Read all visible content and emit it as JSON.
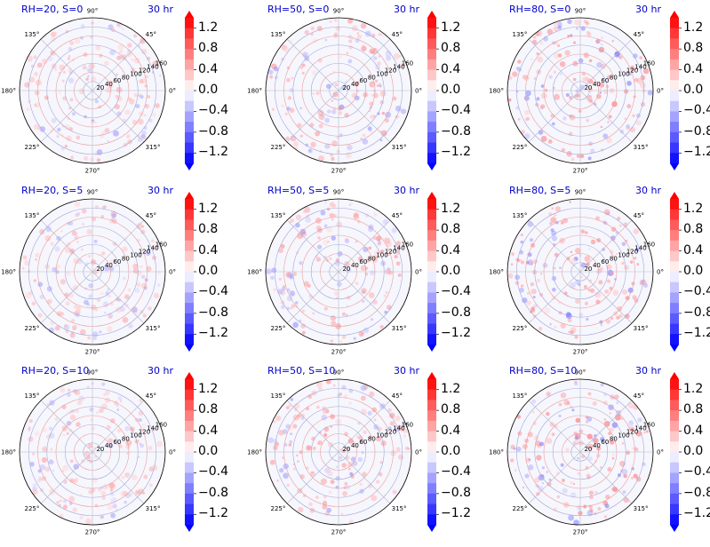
{
  "chart_data": {
    "type": "heatmap",
    "projection": "polar",
    "colormap": "bwr",
    "colors": {
      "negative": "#0000ff",
      "zero": "#ffffff",
      "positive": "#ff0000",
      "title": "#0000cc"
    },
    "time_label": "30 hr",
    "angle_tick_labels": [
      "0°",
      "45°",
      "90°",
      "135°",
      "180°",
      "225°",
      "270°",
      "315°"
    ],
    "angle_tick_values": [
      0,
      45,
      90,
      135,
      180,
      225,
      270,
      315
    ],
    "radial_tick_labels": [
      "20",
      "40",
      "60",
      "80",
      "100",
      "120",
      "140",
      "160"
    ],
    "radial_tick_values": [
      20,
      40,
      60,
      80,
      100,
      120,
      140,
      160
    ],
    "rlim": [
      0,
      160
    ],
    "grid": true,
    "colorbar": {
      "tick_labels": [
        "1.2",
        "0.8",
        "0.4",
        "0.0",
        "−0.4",
        "−0.8",
        "−1.2"
      ],
      "tick_values": [
        1.2,
        0.8,
        0.4,
        0.0,
        -0.4,
        -0.8,
        -1.2
      ],
      "range": [
        -1.4,
        1.4
      ],
      "extend": "both",
      "levels": 14,
      "placement": "right"
    },
    "panels": [
      {
        "title": "RH=20, S=0",
        "rh": 20,
        "s": 0
      },
      {
        "title": "RH=50, S=0",
        "rh": 50,
        "s": 0
      },
      {
        "title": "RH=80, S=0",
        "rh": 80,
        "s": 0
      },
      {
        "title": "RH=20, S=5",
        "rh": 20,
        "s": 5
      },
      {
        "title": "RH=50, S=5",
        "rh": 50,
        "s": 5
      },
      {
        "title": "RH=80, S=5",
        "rh": 80,
        "s": 5
      },
      {
        "title": "RH=20, S=10",
        "rh": 20,
        "s": 10
      },
      {
        "title": "RH=50, S=10",
        "rh": 50,
        "s": 10
      },
      {
        "title": "RH=80, S=10",
        "rh": 80,
        "s": 10
      }
    ]
  }
}
